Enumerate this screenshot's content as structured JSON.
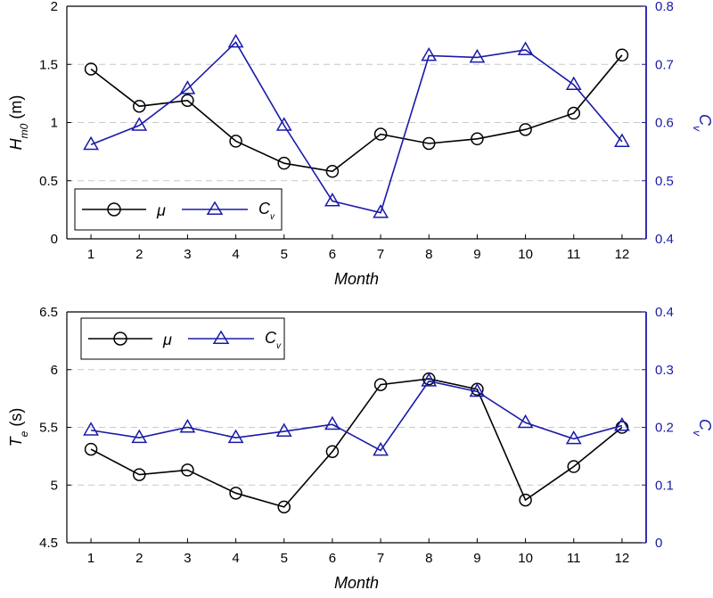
{
  "chart_data": [
    {
      "type": "line",
      "x": [
        1,
        2,
        3,
        4,
        5,
        6,
        7,
        8,
        9,
        10,
        11,
        12
      ],
      "xticks": [
        "1",
        "2",
        "3",
        "4",
        "5",
        "6",
        "7",
        "8",
        "9",
        "10",
        "11",
        "12"
      ],
      "xlabel": "Month",
      "xlim": [
        0.5,
        12.5
      ],
      "ylabel_main": "H",
      "ylabel_sub": "m0",
      "ylabel_unit": " (m)",
      "ylim": [
        0,
        2
      ],
      "yticks": [
        "0",
        "0.5",
        "1",
        "1.5",
        "2"
      ],
      "y2label_main": "C",
      "y2label_sub": "v",
      "y2lim": [
        0.4,
        0.8
      ],
      "y2ticks": [
        "0.4",
        "0.5",
        "0.6",
        "0.7",
        "0.8"
      ],
      "grid": "horizontal-dashed",
      "legend_position": "bottom-left",
      "series": [
        {
          "name": "μ",
          "axis": "left",
          "color": "#000000",
          "marker": "circle",
          "values": [
            1.46,
            1.14,
            1.19,
            0.84,
            0.65,
            0.58,
            0.9,
            0.82,
            0.86,
            0.94,
            1.08,
            1.58
          ]
        },
        {
          "name_main": "C",
          "name_sub": "v",
          "axis": "right",
          "color": "#1a1aa8",
          "marker": "triangle",
          "values": [
            0.562,
            0.595,
            0.658,
            0.738,
            0.595,
            0.465,
            0.445,
            0.715,
            0.712,
            0.725,
            0.665,
            0.567
          ]
        }
      ]
    },
    {
      "type": "line",
      "x": [
        1,
        2,
        3,
        4,
        5,
        6,
        7,
        8,
        9,
        10,
        11,
        12
      ],
      "xticks": [
        "1",
        "2",
        "3",
        "4",
        "5",
        "6",
        "7",
        "8",
        "9",
        "10",
        "11",
        "12"
      ],
      "xlabel": "Month",
      "xlim": [
        0.5,
        12.5
      ],
      "ylabel_main": "T",
      "ylabel_sub": "e",
      "ylabel_unit": " (s)",
      "ylim": [
        4.5,
        6.5
      ],
      "yticks": [
        "4.5",
        "5",
        "5.5",
        "6",
        "6.5"
      ],
      "y2label_main": "C",
      "y2label_sub": "v",
      "y2lim": [
        0,
        0.4
      ],
      "y2ticks": [
        "0",
        "0.1",
        "0.2",
        "0.3",
        "0.4"
      ],
      "grid": "horizontal-dashed",
      "legend_position": "top-left",
      "series": [
        {
          "name": "μ",
          "axis": "left",
          "color": "#000000",
          "marker": "circle",
          "values": [
            5.31,
            5.09,
            5.13,
            4.93,
            4.81,
            5.29,
            5.87,
            5.92,
            5.83,
            4.87,
            5.16,
            5.5
          ]
        },
        {
          "name_main": "C",
          "name_sub": "v",
          "axis": "right",
          "color": "#1a1aa8",
          "marker": "triangle",
          "values": [
            0.195,
            0.182,
            0.2,
            0.182,
            0.193,
            0.205,
            0.16,
            0.28,
            0.262,
            0.208,
            0.18,
            0.203
          ]
        }
      ]
    }
  ]
}
